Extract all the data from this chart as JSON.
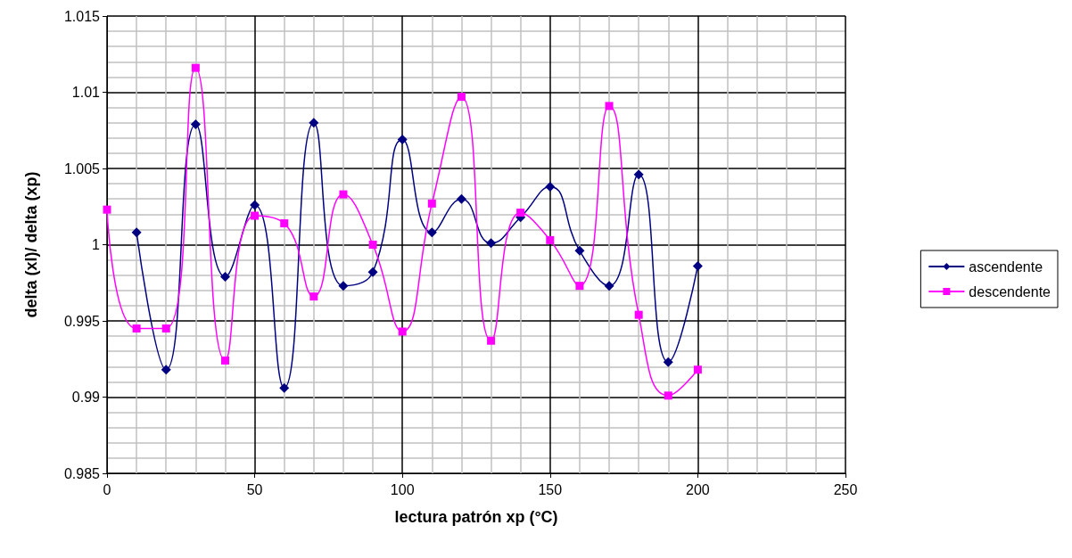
{
  "chart_data": {
    "type": "line",
    "xlabel": "lectura patrón xp (°C)",
    "ylabel": "delta (xl)/ delta (xp)",
    "xlim": [
      0,
      250
    ],
    "xticks": [
      0,
      50,
      100,
      150,
      200,
      250
    ],
    "ylim": [
      0.985,
      1.015
    ],
    "yticks": [
      0.985,
      0.99,
      0.995,
      1,
      1.005,
      1.01,
      1.015
    ],
    "grid": true,
    "legend": "right",
    "line_style": "solid",
    "series": [
      {
        "name": "ascendente",
        "color": "#000080",
        "marker": "diamond",
        "x": [
          10,
          20,
          30,
          40,
          50,
          60,
          70,
          80,
          90,
          100,
          110,
          120,
          130,
          140,
          150,
          160,
          170,
          180,
          190,
          200
        ],
        "values": [
          1.0008,
          0.9918,
          1.0079,
          0.9979,
          1.0026,
          0.9906,
          1.008,
          0.9973,
          0.9982,
          1.0069,
          1.0008,
          1.003,
          1.0001,
          1.0018,
          1.0038,
          0.9996,
          0.9973,
          1.0046,
          0.9923,
          0.9986
        ]
      },
      {
        "name": "descendente",
        "color": "#ff00ff",
        "marker": "square",
        "x": [
          0,
          10,
          20,
          30,
          40,
          50,
          60,
          70,
          80,
          90,
          100,
          110,
          120,
          130,
          140,
          150,
          160,
          170,
          180,
          190,
          200
        ],
        "values": [
          1.0023,
          0.9945,
          0.9945,
          1.0116,
          0.9924,
          1.0019,
          1.0014,
          0.9966,
          1.0033,
          1.0,
          0.9943,
          1.0027,
          1.0097,
          0.9937,
          1.0021,
          1.0003,
          0.9973,
          1.0091,
          0.9954,
          0.9901,
          0.9918
        ]
      }
    ]
  }
}
